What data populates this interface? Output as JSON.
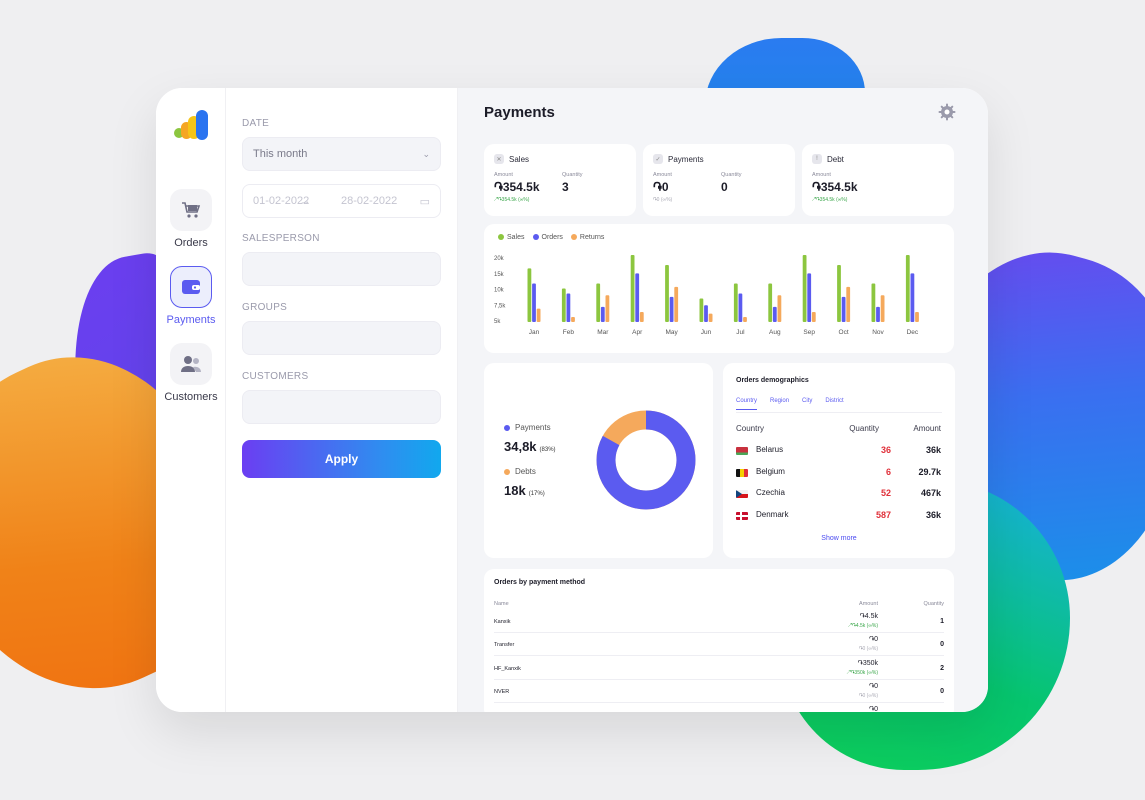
{
  "colors": {
    "accent": "#5b5bf0",
    "sales": "#8cc63f",
    "orders": "#5b5bf0",
    "returns": "#f5a95c",
    "debt_pie": "#f5a95c"
  },
  "nav": [
    {
      "label": "Orders",
      "icon": "cart-icon"
    },
    {
      "label": "Payments",
      "icon": "wallet-icon",
      "active": true
    },
    {
      "label": "Customers",
      "icon": "users-icon"
    }
  ],
  "filters": {
    "date_label": "DATE",
    "period": "This month",
    "date_from": "01-02-2022",
    "date_to": "28-02-2022",
    "salesperson_label": "SALESPERSON",
    "groups_label": "GROUPS",
    "customers_label": "CUSTOMERS",
    "apply_label": "Apply"
  },
  "page": {
    "title": "Payments"
  },
  "kpis": {
    "sales": {
      "title": "Sales",
      "amount_label": "Amount",
      "amount": "֏354.5k",
      "delta": "↗֏354.5k (∞%)",
      "qty_label": "Quantity",
      "qty": "3"
    },
    "payments": {
      "title": "Payments",
      "amount_label": "Amount",
      "amount": "֏0",
      "delta": "֏0 (∞%)",
      "qty_label": "Quantity",
      "qty": "0"
    },
    "debt": {
      "title": "Debt",
      "amount_label": "Amount",
      "amount": "֏354.5k",
      "delta": "↗֏354.5k (∞%)"
    }
  },
  "chart_data": {
    "type": "bar",
    "categories": [
      "Jan",
      "Feb",
      "Mar",
      "Apr",
      "May",
      "Jun",
      "Jul",
      "Aug",
      "Sep",
      "Oct",
      "Nov",
      "Dec"
    ],
    "ytick_labels": [
      "20k",
      "15k",
      "10k",
      "7,5k",
      "5k"
    ],
    "series": [
      {
        "name": "Sales",
        "values": [
          16000,
          10000,
          11500,
          20000,
          17000,
          7000,
          11500,
          11500,
          20000,
          17000,
          11500,
          20000
        ]
      },
      {
        "name": "Orders",
        "values": [
          11500,
          8500,
          4500,
          14500,
          7500,
          5000,
          8500,
          4500,
          14500,
          7500,
          4500,
          14500
        ]
      },
      {
        "name": "Returns",
        "values": [
          4000,
          1500,
          8000,
          3000,
          10500,
          2500,
          1500,
          8000,
          3000,
          10500,
          8000,
          3000
        ]
      }
    ]
  },
  "pie": {
    "payments_label": "Payments",
    "payments_value": "34,8k",
    "payments_pct": "(83%)",
    "debts_label": "Debts",
    "debts_value": "18k",
    "debts_pct": "(17%)",
    "payments_fraction": 0.83
  },
  "demographics": {
    "title": "Orders demographics",
    "tabs": [
      "Country",
      "Region",
      "City",
      "District"
    ],
    "headers": {
      "country": "Country",
      "quantity": "Quantity",
      "amount": "Amount"
    },
    "rows": [
      {
        "country": "Belarus",
        "qty": "36",
        "amount": "36k"
      },
      {
        "country": "Belgium",
        "qty": "6",
        "amount": "29.7k"
      },
      {
        "country": "Czechia",
        "qty": "52",
        "amount": "467k"
      },
      {
        "country": "Denmark",
        "qty": "587",
        "amount": "36k"
      }
    ],
    "show_more": "Show more"
  },
  "payment_methods": {
    "title": "Orders by payment method",
    "headers": {
      "name": "Name",
      "amount": "Amount",
      "quantity": "Quantity"
    },
    "rows": [
      {
        "name": "Kanxik",
        "amount": "֏4.5k",
        "delta": "↗֏4.5k (∞%)",
        "qty": "1"
      },
      {
        "name": "Transfer",
        "amount": "֏0",
        "delta": "֏0 (∞%)",
        "qty": "0"
      },
      {
        "name": "HF_Kanxik",
        "amount": "֏350k",
        "delta": "↗֏350k (∞%)",
        "qty": "2"
      },
      {
        "name": "NVER",
        "amount": "֏0",
        "delta": "֏0 (∞%)",
        "qty": "0"
      },
      {
        "name": "",
        "amount": "֏0",
        "delta": "",
        "qty": ""
      }
    ]
  }
}
